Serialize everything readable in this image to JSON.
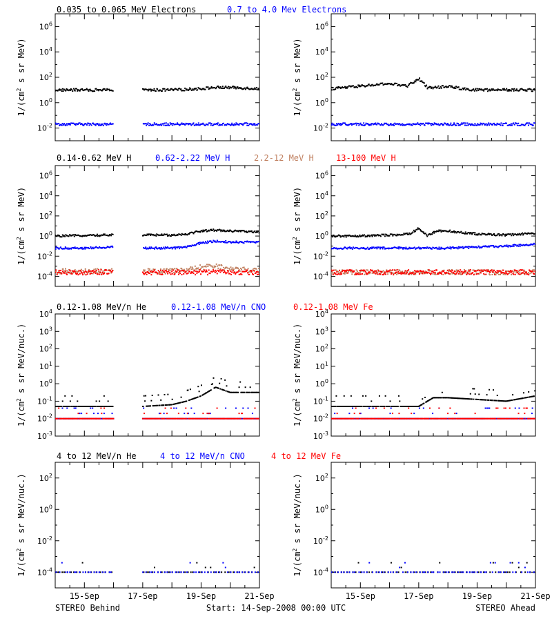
{
  "footer": {
    "left": "STEREO Behind",
    "center": "Start: 14-Sep-2008 00:00 UTC",
    "right": "STEREO Ahead"
  },
  "x_tick_labels": [
    "15-Sep",
    "17-Sep",
    "19-Sep",
    "21-Sep"
  ],
  "colors": {
    "black": "#000000",
    "blue": "#0000ff",
    "tan": "#c08060",
    "red": "#ff0000"
  },
  "rows": [
    {
      "ylabel": "1/(cm2 s sr MeV)",
      "titles": [
        {
          "text": "0.035 to 0.065 MeV Electrons",
          "color": "#000000"
        },
        {
          "text": "0.7 to 4.0 Mev Electrons",
          "color": "#0000ff"
        }
      ],
      "ytick_exps": [
        "-2",
        "0",
        "2",
        "4",
        "6"
      ]
    },
    {
      "ylabel": "1/(cm2 s sr MeV)",
      "titles": [
        {
          "text": "0.14-0.62 MeV H",
          "color": "#000000"
        },
        {
          "text": "0.62-2.22 MeV H",
          "color": "#0000ff"
        },
        {
          "text": "2.2-12 MeV H",
          "color": "#c08060"
        },
        {
          "text": "13-100 MeV H",
          "color": "#ff0000"
        }
      ],
      "ytick_exps": [
        "-4",
        "-2",
        "0",
        "2",
        "4",
        "6"
      ]
    },
    {
      "ylabel": "1/(cm2 s sr MeV/nuc.)",
      "titles": [
        {
          "text": "0.12-1.08 MeV/n He",
          "color": "#000000"
        },
        {
          "text": "0.12-1.08 MeV/n CNO",
          "color": "#0000ff"
        },
        {
          "text": "0.12-1.08 MeV Fe",
          "color": "#ff0000"
        }
      ],
      "ytick_exps": [
        "-3",
        "-2",
        "-1",
        "0",
        "1",
        "2",
        "3",
        "4"
      ]
    },
    {
      "ylabel": "1/(cm2 s sr MeV/nuc.)",
      "titles": [
        {
          "text": "4 to 12 MeV/n He",
          "color": "#000000"
        },
        {
          "text": "4 to 12 MeV/n CNO",
          "color": "#0000ff"
        },
        {
          "text": "4 to 12 MeV Fe",
          "color": "#ff0000"
        }
      ],
      "ytick_exps": [
        "-4",
        "-2",
        "0",
        "2"
      ]
    }
  ],
  "chart_data": [
    {
      "type": "scatter",
      "panel": "electrons-behind",
      "x_unit": "days since 14-Sep-2008",
      "y_scale": "log",
      "xlim": [
        0,
        7
      ],
      "ylim_log10": [
        -3,
        7
      ],
      "series": [
        {
          "name": "0.035 to 0.065 MeV Electrons",
          "color": "#000000",
          "x": [
            0,
            1,
            2,
            2.5,
            3,
            4,
            5,
            5.5,
            6,
            7
          ],
          "log10_y": [
            1.0,
            1.0,
            1.0,
            null,
            1.0,
            1.0,
            1.1,
            1.2,
            1.2,
            1.1
          ]
        },
        {
          "name": "0.7 to 4.0 Mev Electrons",
          "color": "#0000ff",
          "x": [
            0,
            1,
            2,
            2.5,
            3,
            4,
            5,
            6,
            7
          ],
          "log10_y": [
            -1.7,
            -1.7,
            -1.7,
            null,
            -1.7,
            -1.7,
            -1.7,
            -1.7,
            -1.7
          ]
        }
      ]
    },
    {
      "type": "scatter",
      "panel": "electrons-ahead",
      "x_unit": "days since 14-Sep-2008",
      "y_scale": "log",
      "xlim": [
        0,
        7
      ],
      "ylim_log10": [
        -3,
        7
      ],
      "series": [
        {
          "name": "0.035 to 0.065 MeV Electrons",
          "color": "#000000",
          "x": [
            0,
            1,
            2,
            2.6,
            3,
            3.3,
            3.6,
            4,
            4.5,
            5,
            6,
            7
          ],
          "log10_y": [
            1.1,
            1.3,
            1.5,
            1.3,
            1.9,
            1.2,
            1.2,
            1.3,
            1.1,
            1.0,
            1.0,
            1.0
          ]
        },
        {
          "name": "0.7 to 4.0 Mev Electrons",
          "color": "#0000ff",
          "x": [
            0,
            1,
            2,
            3,
            4,
            5,
            6,
            7
          ],
          "log10_y": [
            -1.7,
            -1.7,
            -1.7,
            -1.7,
            -1.7,
            -1.7,
            -1.7,
            -1.7
          ]
        }
      ]
    },
    {
      "type": "scatter",
      "panel": "protons-behind",
      "x_unit": "days since 14-Sep-2008",
      "y_scale": "log",
      "xlim": [
        0,
        7
      ],
      "ylim_log10": [
        -5,
        7
      ],
      "series": [
        {
          "name": "0.14-0.62 MeV H",
          "color": "#000000",
          "x": [
            0,
            1,
            2,
            2.5,
            3,
            4,
            4.5,
            5,
            5.5,
            6,
            7
          ],
          "log10_y": [
            0.0,
            0.05,
            0.1,
            null,
            0.1,
            0.1,
            0.2,
            0.5,
            0.6,
            0.5,
            0.4
          ]
        },
        {
          "name": "0.62-2.22 MeV H",
          "color": "#0000ff",
          "x": [
            0,
            1,
            2,
            2.5,
            3,
            4,
            4.5,
            5,
            5.5,
            6,
            7
          ],
          "log10_y": [
            -1.2,
            -1.2,
            -1.1,
            null,
            -1.2,
            -1.2,
            -1.1,
            -0.7,
            -0.5,
            -0.6,
            -0.6
          ]
        },
        {
          "name": "2.2-12 MeV H",
          "color": "#c08060",
          "x": [
            0,
            1,
            2,
            2.5,
            3,
            4,
            4.5,
            5,
            5.5,
            6,
            7
          ],
          "log10_y": [
            -3.5,
            -3.5,
            -3.5,
            null,
            -3.5,
            -3.5,
            -3.4,
            -3.1,
            -3.0,
            -3.3,
            -3.4
          ]
        },
        {
          "name": "13-100 MeV H",
          "color": "#ff0000",
          "x": [
            0,
            1,
            2,
            2.5,
            3,
            4,
            5,
            6,
            7
          ],
          "log10_y": [
            -3.6,
            -3.6,
            -3.6,
            null,
            -3.6,
            -3.6,
            -3.6,
            -3.6,
            -3.6
          ]
        }
      ]
    },
    {
      "type": "scatter",
      "panel": "protons-ahead",
      "x_unit": "days since 14-Sep-2008",
      "y_scale": "log",
      "xlim": [
        0,
        7
      ],
      "ylim_log10": [
        -5,
        7
      ],
      "series": [
        {
          "name": "0.14-0.62 MeV H",
          "color": "#000000",
          "x": [
            0,
            1,
            2,
            2.7,
            3,
            3.3,
            3.6,
            4,
            5,
            6,
            7
          ],
          "log10_y": [
            0.0,
            0.0,
            0.1,
            0.2,
            0.8,
            0.0,
            0.5,
            0.5,
            0.2,
            0.1,
            0.3
          ]
        },
        {
          "name": "0.62-2.22 MeV H",
          "color": "#0000ff",
          "x": [
            0,
            1,
            2,
            3,
            4,
            5,
            6,
            7
          ],
          "log10_y": [
            -1.2,
            -1.2,
            -1.2,
            -1.2,
            -1.2,
            -1.1,
            -1.0,
            -0.8
          ]
        },
        {
          "name": "2.2-12 MeV H",
          "color": "#c08060",
          "x": [
            0,
            1,
            2,
            3,
            4,
            5,
            6,
            7
          ],
          "log10_y": [
            -3.6,
            -3.6,
            -3.6,
            -3.6,
            -3.6,
            -3.6,
            -3.6,
            -3.6
          ]
        },
        {
          "name": "13-100 MeV H",
          "color": "#ff0000",
          "x": [
            0,
            1,
            2,
            3,
            4,
            5,
            6,
            7
          ],
          "log10_y": [
            -3.6,
            -3.6,
            -3.6,
            -3.6,
            -3.6,
            -3.6,
            -3.6,
            -3.6
          ]
        }
      ]
    },
    {
      "type": "scatter",
      "panel": "heavy-low-behind",
      "x_unit": "days since 14-Sep-2008",
      "y_scale": "log",
      "xlim": [
        0,
        7
      ],
      "ylim_log10": [
        -3,
        4
      ],
      "series": [
        {
          "name": "0.12-1.08 MeV/n He",
          "color": "#000000",
          "x": [
            0,
            1,
            2,
            2.5,
            3,
            4,
            4.5,
            5,
            5.5,
            6,
            7
          ],
          "log10_y": [
            -1.3,
            -1.3,
            -1.3,
            null,
            -1.3,
            -1.2,
            -1.0,
            -0.7,
            -0.2,
            -0.5,
            -0.5
          ]
        },
        {
          "name": "0.12-1.08 MeV/n CNO",
          "color": "#0000ff",
          "x": [
            0,
            1,
            2,
            2.5,
            3,
            4,
            5,
            6,
            7
          ],
          "log10_y": [
            -2.0,
            -2.0,
            -2.0,
            null,
            -2.0,
            -2.0,
            -2.0,
            -2.0,
            -2.0
          ]
        },
        {
          "name": "0.12-1.08 MeV Fe",
          "color": "#ff0000",
          "x": [
            0,
            1,
            2,
            2.5,
            3,
            4,
            5,
            6,
            7
          ],
          "log10_y": [
            -2.0,
            -2.0,
            -2.0,
            null,
            -2.0,
            -2.0,
            -2.0,
            -2.0,
            -2.0
          ]
        }
      ]
    },
    {
      "type": "scatter",
      "panel": "heavy-low-ahead",
      "x_unit": "days since 14-Sep-2008",
      "y_scale": "log",
      "xlim": [
        0,
        7
      ],
      "ylim_log10": [
        -3,
        4
      ],
      "series": [
        {
          "name": "0.12-1.08 MeV/n He",
          "color": "#000000",
          "x": [
            0,
            1,
            2,
            3,
            3.5,
            4,
            5,
            6,
            7
          ],
          "log10_y": [
            -1.3,
            -1.3,
            -1.3,
            -1.3,
            -0.8,
            -0.8,
            -0.9,
            -1.0,
            -0.7
          ]
        },
        {
          "name": "0.12-1.08 MeV/n CNO",
          "color": "#0000ff",
          "x": [
            0,
            1,
            2,
            3,
            4,
            5,
            6,
            7
          ],
          "log10_y": [
            -2.0,
            -2.0,
            -2.0,
            -2.0,
            -2.0,
            -2.0,
            -2.0,
            -2.0
          ]
        },
        {
          "name": "0.12-1.08 MeV Fe",
          "color": "#ff0000",
          "x": [
            0,
            1,
            2,
            3,
            4,
            5,
            6,
            7
          ],
          "log10_y": [
            -2.0,
            -2.0,
            -2.0,
            -2.0,
            -2.0,
            -2.0,
            -2.0,
            -2.0
          ]
        }
      ]
    },
    {
      "type": "scatter",
      "panel": "heavy-high-behind",
      "x_unit": "days since 14-Sep-2008",
      "y_scale": "log",
      "xlim": [
        0,
        7
      ],
      "ylim_log10": [
        -5,
        3
      ],
      "series": [
        {
          "name": "4 to 12 MeV/n He",
          "color": "#000000",
          "x": [
            0,
            1,
            2,
            2.5,
            3,
            4,
            5,
            6,
            7
          ],
          "log10_y": [
            -4.0,
            -4.0,
            -4.0,
            null,
            -4.0,
            -4.0,
            -4.0,
            -4.0,
            -4.0
          ]
        },
        {
          "name": "4 to 12 MeV/n CNO",
          "color": "#0000ff",
          "x": [
            0,
            1,
            2,
            2.5,
            3,
            4,
            5,
            6,
            7
          ],
          "log10_y": [
            -4.0,
            -4.0,
            -4.0,
            null,
            -4.0,
            -4.0,
            -4.0,
            -4.0,
            -4.0
          ]
        }
      ]
    },
    {
      "type": "scatter",
      "panel": "heavy-high-ahead",
      "x_unit": "days since 14-Sep-2008",
      "y_scale": "log",
      "xlim": [
        0,
        7
      ],
      "ylim_log10": [
        -5,
        3
      ],
      "series": [
        {
          "name": "4 to 12 MeV/n He",
          "color": "#000000",
          "x": [
            0,
            1,
            2,
            3,
            4,
            5,
            6,
            7
          ],
          "log10_y": [
            -4.0,
            -4.0,
            -4.0,
            -4.0,
            -4.0,
            -4.0,
            -4.0,
            -4.0
          ]
        },
        {
          "name": "4 to 12 MeV/n CNO",
          "color": "#0000ff",
          "x": [
            0,
            1,
            2,
            3,
            4,
            5,
            6,
            7
          ],
          "log10_y": [
            -4.0,
            -4.0,
            -4.0,
            -4.0,
            -4.0,
            -4.0,
            -4.0,
            -4.0
          ]
        }
      ]
    }
  ]
}
